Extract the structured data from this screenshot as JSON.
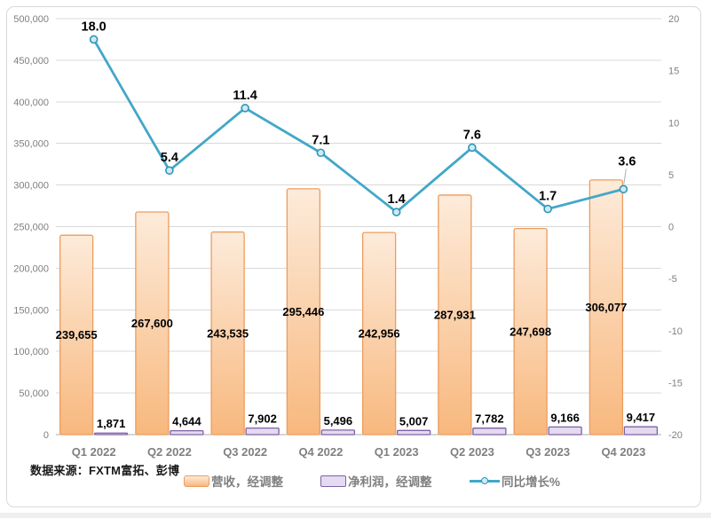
{
  "source_note": "数据来源：FXTM富拓、彭博",
  "legend": {
    "revenue": "营收，经调整",
    "net_profit": "净利润，经调整",
    "yoy": "同比增长%"
  },
  "colors": {
    "bar_fill_top": "#FDEBDA",
    "bar_fill_bottom": "#F8B87E",
    "bar_border": "#EC9C5E",
    "profit_fill": "#E4DAF1",
    "profit_border": "#7E61A5",
    "line": "#42A7C9",
    "marker_fill": "#CFEAF4",
    "marker_stroke": "#2E96B8",
    "gridline": "#D9D9D9",
    "axis_line": "#ACACAC",
    "axis_text": "#7F7F7F",
    "data_label": "#000000",
    "leader_line": "#ADADAD"
  },
  "chart_data": {
    "type": "bar+line combo",
    "title": "",
    "categories": [
      "Q1 2022",
      "Q2 2022",
      "Q3 2022",
      "Q4 2022",
      "Q1 2023",
      "Q2 2023",
      "Q3 2023",
      "Q4 2023"
    ],
    "series": [
      {
        "name": "营收，经调整",
        "type": "bar",
        "axis": "left",
        "values": [
          239655,
          267600,
          243535,
          295446,
          242956,
          287931,
          247698,
          306077
        ],
        "labels": [
          "239,655",
          "267,600",
          "243,535",
          "295,446",
          "242,956",
          "287,931",
          "247,698",
          "306,077"
        ]
      },
      {
        "name": "净利润，经调整",
        "type": "bar",
        "axis": "left",
        "values": [
          1871,
          4644,
          7902,
          5496,
          5007,
          7782,
          9166,
          9417
        ],
        "labels": [
          "1,871",
          "4,644",
          "7,902",
          "5,496",
          "5,007",
          "7,782",
          "9,166",
          "9,417"
        ]
      },
      {
        "name": "同比增长%",
        "type": "line",
        "axis": "right",
        "values": [
          18.0,
          5.4,
          11.4,
          7.1,
          1.4,
          7.6,
          1.7,
          3.6
        ],
        "labels": [
          "18.0",
          "5.4",
          "11.4",
          "7.1",
          "1.4",
          "7.6",
          "1.7",
          "3.6"
        ]
      }
    ],
    "left_axis": {
      "min": 0,
      "max": 500000,
      "step": 50000,
      "ticks": [
        "0",
        "50,000",
        "100,000",
        "150,000",
        "200,000",
        "250,000",
        "300,000",
        "350,000",
        "400,000",
        "450,000",
        "500,000"
      ]
    },
    "right_axis": {
      "min": -20,
      "max": 20,
      "step": 5,
      "ticks": [
        "-20",
        "-15",
        "-10",
        "-5",
        "0",
        "5",
        "10",
        "15",
        "20"
      ]
    },
    "grid": true,
    "legend_position": "bottom"
  }
}
